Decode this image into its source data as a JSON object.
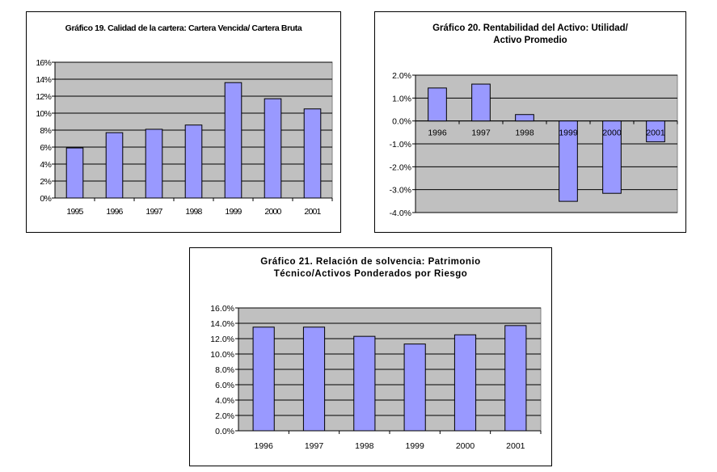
{
  "chart_data": [
    {
      "type": "bar",
      "title": "Gráfico 19. Calidad de la cartera: Cartera Vencida/ Cartera Bruta",
      "categories": [
        "1995",
        "1996",
        "1997",
        "1998",
        "1999",
        "2000",
        "2001"
      ],
      "values": [
        5.9,
        7.7,
        8.1,
        8.6,
        13.6,
        11.7,
        10.5
      ],
      "ylim": [
        0,
        16
      ],
      "yticks": [
        0,
        2,
        4,
        6,
        8,
        10,
        12,
        14,
        16
      ],
      "ytick_labels": [
        "0%",
        "2%",
        "4%",
        "6%",
        "8%",
        "10%",
        "12%",
        "14%",
        "16%"
      ],
      "unit": "%",
      "grid": true,
      "xlabel": "",
      "ylabel": ""
    },
    {
      "type": "bar",
      "title": "Gráfico 20. Rentabilidad del Activo: Utilidad/ Activo Promedio",
      "categories": [
        "1996",
        "1997",
        "1998",
        "1999",
        "2000",
        "2001"
      ],
      "values": [
        1.44,
        1.61,
        0.28,
        -3.51,
        -3.16,
        -0.91
      ],
      "ylim": [
        -4,
        2
      ],
      "yticks": [
        -4,
        -3,
        -2,
        -1,
        0,
        1,
        2
      ],
      "ytick_labels": [
        "-4.0%",
        "-3.0%",
        "-2.0%",
        "-1.0%",
        "0.0%",
        "1.0%",
        "2.0%"
      ],
      "unit": "%",
      "grid": true,
      "xlabel": "",
      "ylabel": ""
    },
    {
      "type": "bar",
      "title": "Gráfico 21. Relación de solvencia: Patrimonio Técnico/Activos Ponderados por Riesgo",
      "categories": [
        "1996",
        "1997",
        "1998",
        "1999",
        "2000",
        "2001"
      ],
      "values": [
        13.5,
        13.5,
        12.3,
        11.3,
        12.5,
        13.7
      ],
      "ylim": [
        0,
        16
      ],
      "yticks": [
        0,
        2,
        4,
        6,
        8,
        10,
        12,
        14,
        16
      ],
      "ytick_labels": [
        "0.0%",
        "2.0%",
        "4.0%",
        "6.0%",
        "8.0%",
        "10.0%",
        "12.0%",
        "14.0%",
        "16.0%"
      ],
      "unit": "%",
      "grid": true,
      "xlabel": "",
      "ylabel": ""
    }
  ],
  "colors": {
    "bar": "#9999ff",
    "plot_bg": "#c0c0c0",
    "grid": "#000000"
  }
}
